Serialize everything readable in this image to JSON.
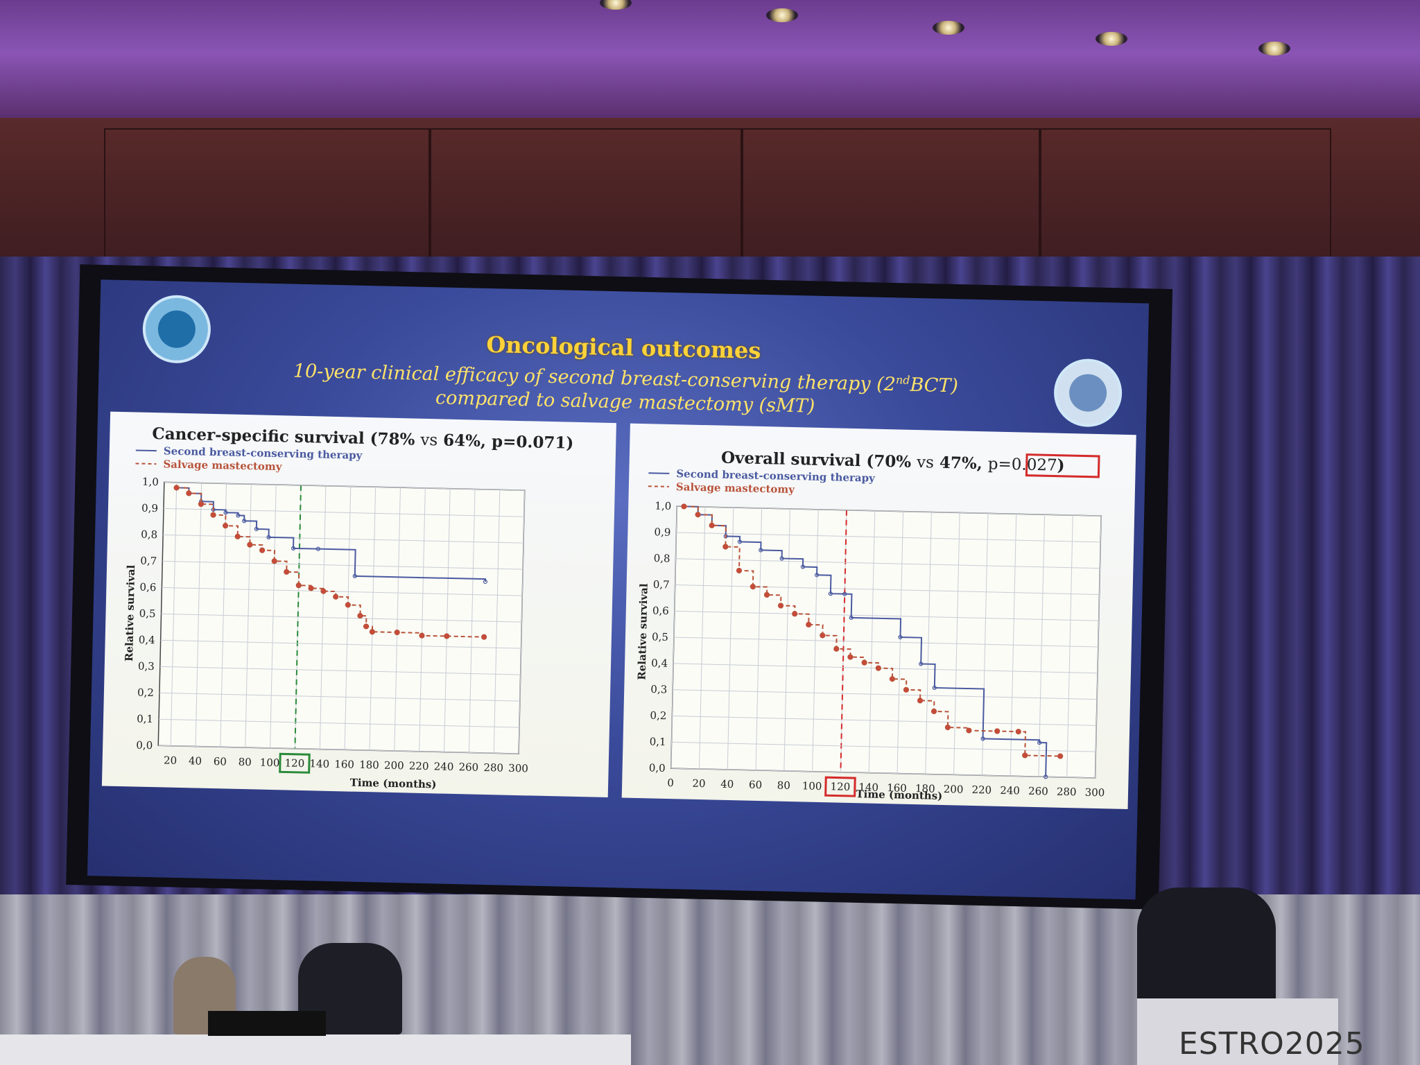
{
  "slide": {
    "title": "Oncological outcomes",
    "subtitle_line1_pre": "10-year clinical efficacy of second breast-conserving therapy (2",
    "subtitle_sup": "nd",
    "subtitle_line1_post": "BCT)",
    "subtitle_line2": "compared to salvage mastectomy (sMT)"
  },
  "venue": {
    "podium_brand": "ESTRO",
    "podium_year": "2025"
  },
  "colors": {
    "bct": "#4a5aa0",
    "smt": "#b8533a",
    "highlight_green": "#2a8a3a",
    "highlight_red": "#d42a2a",
    "title_yellow": "#ffd23a"
  },
  "chart_data": [
    {
      "type": "line",
      "title_pre": "Cancer-specific survival (78% ",
      "title_vs": "vs",
      "title_post": " 64%, p=0.071)",
      "xlabel": "Time (months)",
      "ylabel": "Relative survival",
      "xlim": [
        10,
        300
      ],
      "ylim": [
        0.0,
        1.0
      ],
      "xticks": [
        "20",
        "40",
        "60",
        "80",
        "100",
        "120",
        "140",
        "160",
        "180",
        "200",
        "220",
        "240",
        "260",
        "280",
        "300"
      ],
      "yticks": [
        "0,0",
        "0,1",
        "0,2",
        "0,3",
        "0,4",
        "0,5",
        "0,6",
        "0,7",
        "0,8",
        "0,9",
        "1,0"
      ],
      "highlight_x": 120,
      "highlight_color": "green",
      "grid": true,
      "legend_position": "top-left",
      "series": [
        {
          "name": "Second breast-conserving therapy",
          "style": "solid",
          "x": [
            20,
            30,
            40,
            50,
            60,
            70,
            75,
            85,
            95,
            115,
            135,
            165,
            270
          ],
          "y": [
            0.98,
            0.96,
            0.93,
            0.9,
            0.89,
            0.88,
            0.86,
            0.83,
            0.8,
            0.76,
            0.76,
            0.66,
            0.65
          ]
        },
        {
          "name": "Salvage mastectomy",
          "style": "dashed",
          "x": [
            20,
            30,
            40,
            50,
            60,
            70,
            80,
            90,
            100,
            110,
            120,
            130,
            140,
            150,
            160,
            170,
            175,
            180,
            200,
            220,
            240,
            270
          ],
          "y": [
            0.98,
            0.96,
            0.92,
            0.88,
            0.84,
            0.8,
            0.77,
            0.75,
            0.71,
            0.67,
            0.62,
            0.61,
            0.6,
            0.58,
            0.55,
            0.51,
            0.47,
            0.45,
            0.45,
            0.44,
            0.44,
            0.44
          ]
        }
      ]
    },
    {
      "type": "line",
      "title_pre": "Overall survival (70% ",
      "title_vs": "vs",
      "title_mid": " 47%, ",
      "title_p": "p=0.027",
      "title_post": ")",
      "xlabel": "Time (months)",
      "ylabel": "Relative survival",
      "xlim": [
        0,
        300
      ],
      "ylim": [
        0.0,
        1.0
      ],
      "xticks": [
        "0",
        "20",
        "40",
        "60",
        "80",
        "100",
        "120",
        "140",
        "160",
        "180",
        "200",
        "220",
        "240",
        "260",
        "280",
        "300"
      ],
      "yticks": [
        "0,0",
        "0,1",
        "0,2",
        "0,3",
        "0,4",
        "0,5",
        "0,6",
        "0,7",
        "0,8",
        "0,9",
        "1,0"
      ],
      "highlight_x": 120,
      "highlight_color": "red",
      "grid": true,
      "legend_position": "top-left",
      "series": [
        {
          "name": "Second breast-conserving therapy",
          "style": "solid",
          "x": [
            5,
            15,
            25,
            35,
            45,
            60,
            75,
            90,
            100,
            110,
            120,
            125,
            160,
            175,
            185,
            220,
            260,
            265
          ],
          "y": [
            1.0,
            0.97,
            0.93,
            0.89,
            0.87,
            0.84,
            0.81,
            0.78,
            0.75,
            0.68,
            0.68,
            0.59,
            0.52,
            0.42,
            0.33,
            0.14,
            0.13,
            0.0
          ]
        },
        {
          "name": "Salvage mastectomy",
          "style": "dashed",
          "x": [
            5,
            15,
            25,
            35,
            45,
            55,
            65,
            75,
            85,
            95,
            105,
            115,
            125,
            135,
            145,
            155,
            165,
            175,
            185,
            195,
            210,
            230,
            245,
            250,
            275
          ],
          "y": [
            1.0,
            0.97,
            0.93,
            0.85,
            0.76,
            0.7,
            0.67,
            0.63,
            0.6,
            0.56,
            0.52,
            0.47,
            0.44,
            0.42,
            0.4,
            0.36,
            0.32,
            0.28,
            0.24,
            0.18,
            0.17,
            0.17,
            0.17,
            0.08,
            0.08
          ]
        }
      ]
    }
  ]
}
